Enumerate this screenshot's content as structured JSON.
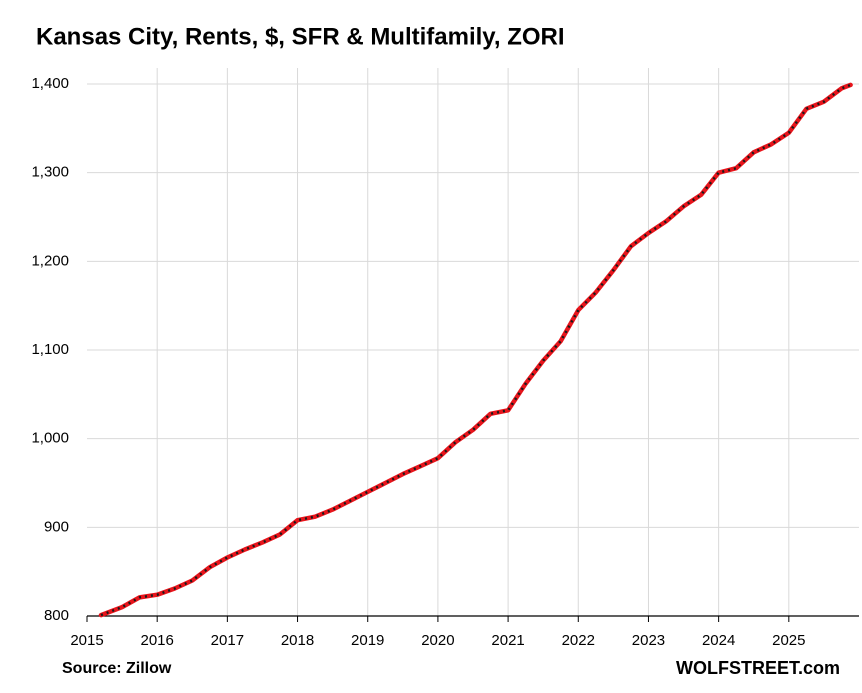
{
  "chart_data": {
    "type": "line",
    "title": "Kansas City, Rents, $, SFR & Multifamily, ZORI",
    "source": "Source: Zillow",
    "brand": "WOLFSTREET.com",
    "x": [
      2015.2,
      2015.5,
      2015.75,
      2016.0,
      2016.25,
      2016.5,
      2016.75,
      2017.0,
      2017.25,
      2017.5,
      2017.75,
      2018.0,
      2018.25,
      2018.5,
      2018.75,
      2019.0,
      2019.25,
      2019.5,
      2019.75,
      2020.0,
      2020.25,
      2020.5,
      2020.75,
      2021.0,
      2021.25,
      2021.5,
      2021.75,
      2022.0,
      2022.25,
      2022.5,
      2022.75,
      2023.0,
      2023.25,
      2023.5,
      2023.75,
      2024.0,
      2024.25,
      2024.5,
      2024.75,
      2025.0,
      2025.25,
      2025.5,
      2025.75,
      2025.88
    ],
    "series": [
      {
        "name": "ZORI",
        "color": "#e8141b",
        "values": [
          801,
          810,
          821,
          824,
          831,
          840,
          855,
          866,
          875,
          883,
          892,
          908,
          912,
          920,
          930,
          940,
          950,
          960,
          969,
          978,
          996,
          1010,
          1028,
          1032,
          1062,
          1088,
          1110,
          1145,
          1165,
          1190,
          1217,
          1232,
          1245,
          1262,
          1275,
          1300,
          1305,
          1323,
          1332,
          1345,
          1372,
          1380,
          1395,
          1399
        ]
      }
    ],
    "xlim": [
      2015,
      2026
    ],
    "xticks": [
      2015,
      2016,
      2017,
      2018,
      2019,
      2020,
      2021,
      2022,
      2023,
      2024,
      2025
    ],
    "ylim": [
      800,
      1400
    ],
    "yticks": [
      800,
      900,
      {
        "value": 1000,
        "label": "1,000"
      },
      {
        "value": 1100,
        "label": "1,100"
      },
      {
        "value": 1200,
        "label": "1,200"
      },
      {
        "value": 1300,
        "label": "1,300"
      },
      {
        "value": 1400,
        "label": "1,400"
      }
    ],
    "grid": true
  }
}
